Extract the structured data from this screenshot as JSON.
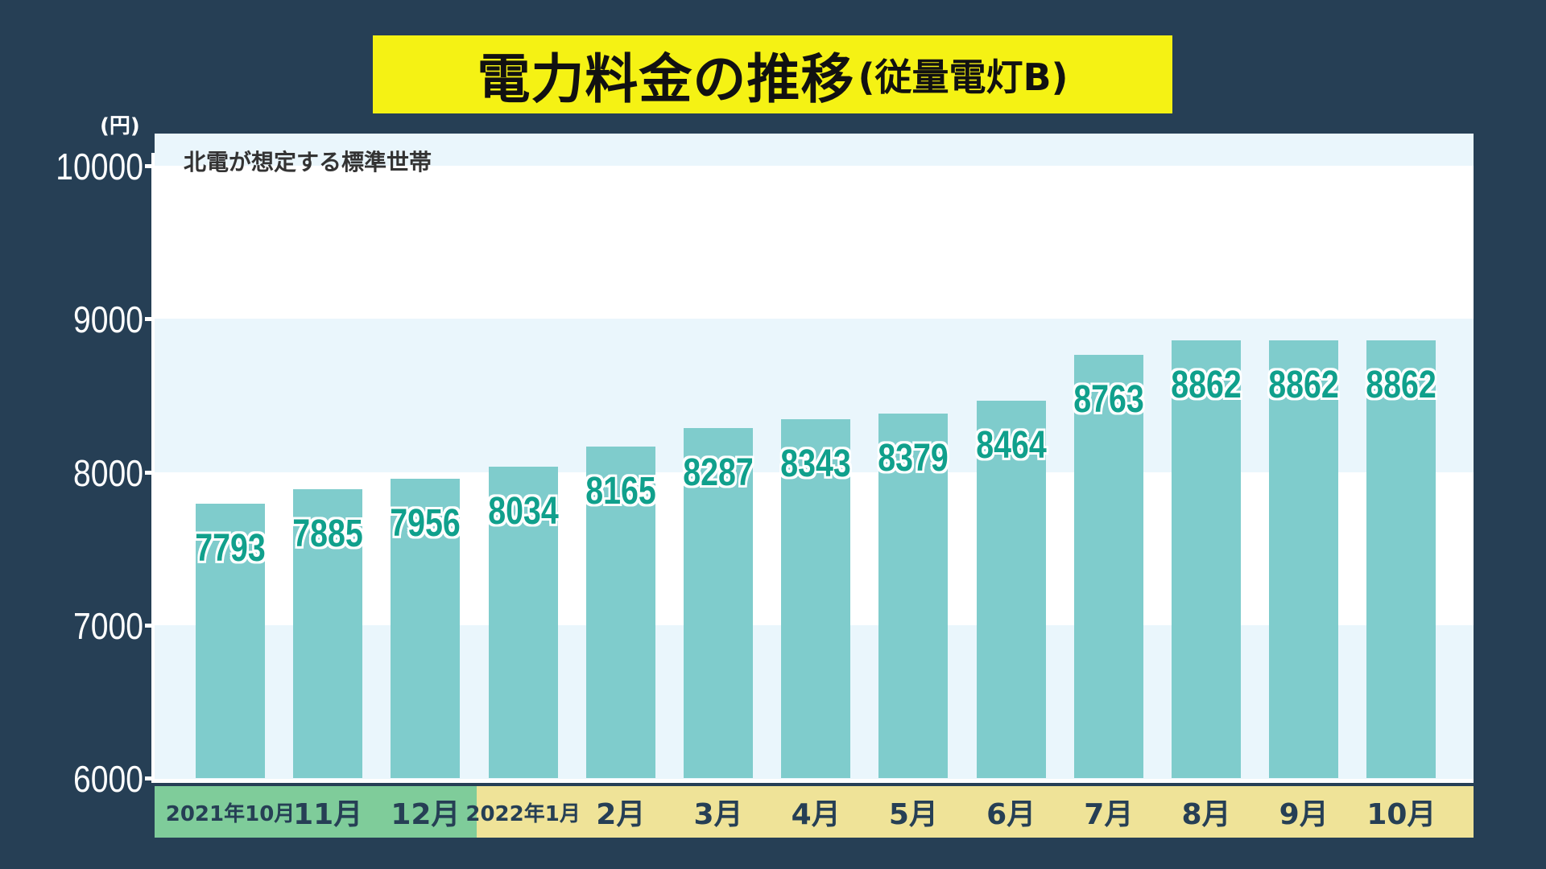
{
  "title": {
    "main": "電力料金の推移",
    "sub": "(従量電灯B)"
  },
  "unit_label": "(円)",
  "subtitle": "北電が想定する標準世帯",
  "colors": {
    "background": "#263f55",
    "title_bg": "#f5f214",
    "bar": "#7fcccc",
    "value_text": "#10a08c",
    "strip_2021": "#7fcc9a",
    "strip_2022": "#efe398"
  },
  "chart_data": {
    "type": "bar",
    "categories": [
      "2021年10月",
      "11月",
      "12月",
      "2022年1月",
      "2月",
      "3月",
      "4月",
      "5月",
      "6月",
      "7月",
      "8月",
      "9月",
      "10月"
    ],
    "values": [
      7793,
      7885,
      7956,
      8034,
      8165,
      8287,
      8343,
      8379,
      8464,
      8763,
      8862,
      8862,
      8862
    ],
    "value_labels": [
      "7793",
      "7885",
      "7956",
      "8034",
      "8165",
      "8287",
      "8343",
      "8379",
      "8464",
      "8763",
      "8862",
      "8862",
      "8862"
    ],
    "title": "電力料金の推移(従量電灯B)",
    "subtitle": "北電が想定する標準世帯",
    "ylabel": "(円)",
    "ylim": [
      6000,
      10000
    ],
    "yticks": [
      "6000",
      "7000",
      "8000",
      "9000",
      "10000"
    ],
    "grid": "alternating horizontal bands",
    "year_groups": [
      {
        "year": "2021",
        "count": 3
      },
      {
        "year": "2022",
        "count": 10
      }
    ]
  }
}
